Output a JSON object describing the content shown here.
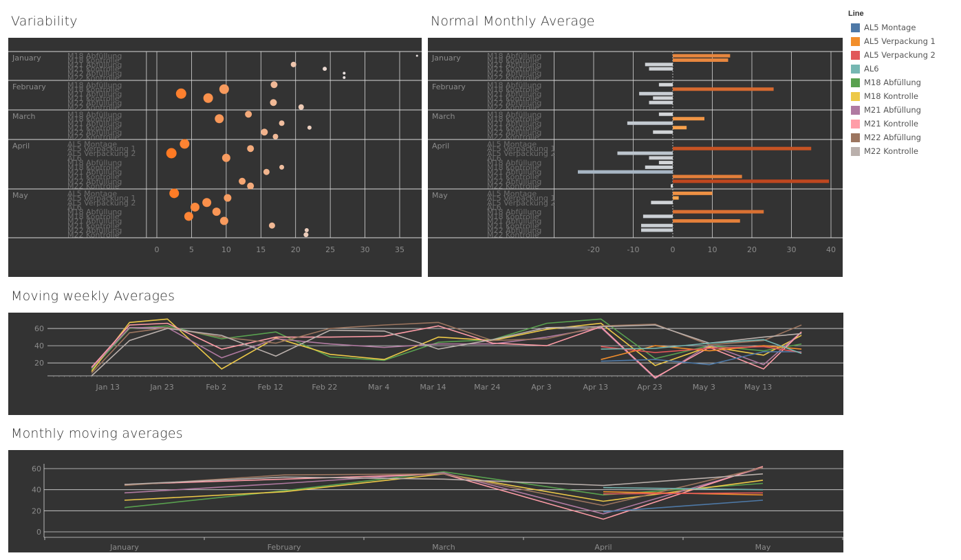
{
  "titles": {
    "variability": "Variability",
    "normal_monthly_average": "Normal Monthly Average",
    "moving_weekly": "Moving weekly Averages",
    "monthly_moving": "Monthly moving averages"
  },
  "legend": {
    "title": "Line",
    "items": [
      {
        "label": "AL5 Montage",
        "color": "#4e79a7"
      },
      {
        "label": "AL5 Verpackung 1",
        "color": "#f28e2b"
      },
      {
        "label": "AL5 Verpackung 2",
        "color": "#e15759"
      },
      {
        "label": "AL6",
        "color": "#76b7b2"
      },
      {
        "label": "M18 Abfüllung",
        "color": "#59a14f"
      },
      {
        "label": "M18 Kontrolle",
        "color": "#edc948"
      },
      {
        "label": "M21 Abfüllung",
        "color": "#b07aa1"
      },
      {
        "label": "M21 Kontrolle",
        "color": "#ff9da7"
      },
      {
        "label": "M22 Abfüllung",
        "color": "#9c755f"
      },
      {
        "label": "M22 Kontrolle",
        "color": "#bab0ac"
      }
    ]
  },
  "chart_data": [
    {
      "id": "variability",
      "type": "scatter",
      "title": "Variability",
      "xlim": [
        -20,
        39
      ],
      "xticks": [
        0,
        5,
        10,
        15,
        20,
        25,
        30,
        35
      ],
      "groups": [
        {
          "month": "January",
          "rows": [
            "M18 Abfüllung",
            "M18 Kontrolle",
            "M21 Abfüllung",
            "M21 Kontrolle",
            "M22 Abfüllung",
            "M22 Kontrolle"
          ],
          "points": [
            [
              37.5,
              0,
              1.5
            ],
            [
              19.7,
              2,
              4
            ],
            [
              24.2,
              3,
              3
            ],
            [
              27.0,
              4,
              2
            ],
            [
              27.0,
              5,
              2
            ]
          ]
        },
        {
          "month": "February",
          "rows": [
            "M18 Abfüllung",
            "M18 Kontrolle",
            "M21 Abfüllung",
            "M21 Kontrolle",
            "M22 Abfüllung",
            "M22 Kontrolle"
          ],
          "points": [
            [
              16.9,
              0,
              5
            ],
            [
              9.7,
              1,
              7
            ],
            [
              3.5,
              2,
              7.5
            ],
            [
              7.4,
              3,
              7
            ],
            [
              16.8,
              4,
              5
            ],
            [
              20.8,
              5,
              4
            ]
          ]
        },
        {
          "month": "March",
          "rows": [
            "M18 Abfüllung",
            "M18 Kontrolle",
            "M21 Abfüllung",
            "M21 Kontrolle",
            "M22 Abfüllung",
            "M22 Kontrolle"
          ],
          "points": [
            [
              13.2,
              0,
              5
            ],
            [
              9.0,
              1,
              6.5
            ],
            [
              18.0,
              2,
              4
            ],
            [
              22.0,
              3,
              3
            ],
            [
              15.5,
              4,
              5
            ],
            [
              17.1,
              5,
              4
            ]
          ]
        },
        {
          "month": "April",
          "rows": [
            "AL5 Montage",
            "AL5 Verpackung 1",
            "AL5 Verpackung 2",
            "AL6",
            "M18 Abfüllung",
            "M18 Kontrolle",
            "M21 Abfüllung",
            "M21 Kontrolle",
            "M22 Abfüllung",
            "M22 Kontrolle"
          ],
          "points": [
            [
              4.0,
              0,
              7
            ],
            [
              13.5,
              1,
              5
            ],
            [
              2.1,
              2,
              7.5
            ],
            [
              10.0,
              3,
              6
            ],
            [
              18.0,
              5,
              3.5
            ],
            [
              15.8,
              6,
              4.5
            ],
            [
              12.3,
              8,
              5
            ],
            [
              13.5,
              9,
              5
            ]
          ]
        },
        {
          "month": "May",
          "rows": [
            "AL5 Montage",
            "AL5 Verpackung 1",
            "AL5 Verpackung 2",
            "AL6",
            "M18 Abfüllung",
            "M18 Kontrolle",
            "M21 Abfüllung",
            "M21 Kontrolle",
            "M22 Abfüllung",
            "M22 Kontrolle"
          ],
          "points": [
            [
              2.5,
              0,
              7
            ],
            [
              10.2,
              1,
              5.5
            ],
            [
              7.2,
              2,
              6.5
            ],
            [
              5.5,
              3,
              6.5
            ],
            [
              8.6,
              4,
              6
            ],
            [
              4.6,
              5,
              6.5
            ],
            [
              9.7,
              6,
              6
            ],
            [
              16.6,
              7,
              4.5
            ],
            [
              21.6,
              8,
              3
            ],
            [
              21.5,
              9,
              3.5
            ]
          ]
        }
      ]
    },
    {
      "id": "normal_monthly_average",
      "type": "bar",
      "title": "Normal Monthly Average",
      "xlim": [
        -27,
        41
      ],
      "xticks": [
        -20,
        -10,
        0,
        10,
        20,
        30,
        40
      ],
      "groups": [
        {
          "month": "January",
          "rows": [
            "M18 Abfüllung",
            "M18 Kontrolle",
            "M21 Abfüllung",
            "M21 Kontrolle",
            "M22 Abfüllung",
            "M22 Kontrolle"
          ],
          "values": [
            14.5,
            14.0,
            -7,
            -6,
            0,
            0
          ]
        },
        {
          "month": "February",
          "rows": [
            "M18 Abfüllung",
            "M18 Kontrolle",
            "M21 Abfüllung",
            "M21 Kontrolle",
            "M22 Abfüllung",
            "M22 Kontrolle"
          ],
          "values": [
            -3.5,
            25.5,
            -8.5,
            -5,
            -6,
            0
          ]
        },
        {
          "month": "March",
          "rows": [
            "M18 Abfüllung",
            "M18 Kontrolle",
            "M21 Abfüllung",
            "M21 Kontrolle",
            "M22 Abfüllung",
            "M22 Kontrolle"
          ],
          "values": [
            -3.5,
            8,
            -11.5,
            3.5,
            -5,
            0
          ]
        },
        {
          "month": "April",
          "rows": [
            "AL5 Montage",
            "AL5 Verpackung 1",
            "AL5 Verpackung 2",
            "AL6",
            "M18 Abfüllung",
            "M18 Kontrolle",
            "M21 Abfüllung",
            "M21 Kontrolle",
            "M22 Abfüllung",
            "M22 Kontrolle"
          ],
          "values": [
            0,
            35,
            -14,
            -6,
            -3.5,
            -7,
            -24,
            17.5,
            39.5,
            -0.5
          ]
        },
        {
          "month": "May",
          "rows": [
            "AL5 Montage",
            "AL5 Verpackung 1",
            "AL5 Verpackung 2",
            "AL6",
            "M18 Abfüllung",
            "M18 Kontrolle",
            "M21 Abfüllung",
            "M21 Kontrolle",
            "M22 Abfüllung",
            "M22 Kontrolle"
          ],
          "values": [
            10,
            1.5,
            -5.5,
            0,
            23,
            -7.5,
            17,
            -8,
            -8,
            0
          ]
        }
      ]
    },
    {
      "id": "moving_weekly",
      "type": "line",
      "title": "Moving weekly Averages",
      "ylim": [
        5,
        72
      ],
      "yticks": [
        20,
        40,
        60
      ],
      "xticks": [
        "Jan 13",
        "Jan 23",
        "Feb 2",
        "Feb 12",
        "Feb 22",
        "Mar 4",
        "Mar 14",
        "Mar 24",
        "Apr 3",
        "Apr 13",
        "Apr 23",
        "May 3",
        "May 13"
      ],
      "x_day_range": [
        3,
        142
      ],
      "x_tick_days": [
        13,
        23,
        33,
        43,
        53,
        63,
        73,
        83,
        93,
        103,
        113,
        123,
        133
      ],
      "series": [
        {
          "name": "M18 Abfüllung",
          "color": "#59a14f",
          "x": [
            10,
            17,
            24,
            34,
            44,
            54,
            64,
            74,
            84,
            94,
            104,
            114,
            124,
            134,
            141
          ],
          "y": [
            12,
            60,
            63,
            48,
            56,
            27,
            23,
            44,
            47,
            66,
            71,
            25,
            40,
            34,
            42
          ]
        },
        {
          "name": "M18 Kontrolle",
          "color": "#edc948",
          "x": [
            10,
            17,
            24,
            34,
            44,
            54,
            64,
            74,
            84,
            94,
            104,
            114,
            124,
            134,
            141
          ],
          "y": [
            10,
            67,
            71,
            13,
            49,
            30,
            24,
            50,
            46,
            59,
            66,
            17,
            39,
            29,
            52
          ]
        },
        {
          "name": "M21 Abfüllung",
          "color": "#b07aa1",
          "x": [
            10,
            17,
            24,
            34,
            44,
            54,
            64,
            74,
            84,
            94,
            104,
            114,
            124,
            134,
            141
          ],
          "y": [
            14,
            61,
            61,
            26,
            48,
            42,
            38,
            42,
            42,
            50,
            61,
            2,
            41,
            18,
            56
          ]
        },
        {
          "name": "M21 Kontrolle",
          "color": "#ff9da7",
          "x": [
            10,
            17,
            24,
            34,
            44,
            54,
            64,
            74,
            84,
            94,
            104,
            114,
            124,
            134,
            141
          ],
          "y": [
            15,
            64,
            66,
            36,
            50,
            50,
            51,
            63,
            43,
            40,
            62,
            3,
            38,
            13,
            56
          ]
        },
        {
          "name": "M22 Abfüllung",
          "color": "#9c755f",
          "x": [
            10,
            17,
            24,
            34,
            44,
            54,
            64,
            74,
            84,
            94,
            104,
            114,
            124,
            134,
            141
          ],
          "y": [
            8,
            55,
            61,
            50,
            43,
            60,
            64,
            67,
            46,
            48,
            63,
            65,
            41,
            46,
            64
          ]
        },
        {
          "name": "M22 Kontrolle",
          "color": "#bab0ac",
          "x": [
            10,
            17,
            24,
            34,
            44,
            54,
            64,
            74,
            84,
            94,
            104,
            114,
            124,
            134,
            141
          ],
          "y": [
            5,
            46,
            60,
            52,
            28,
            58,
            57,
            36,
            47,
            61,
            62,
            64,
            43,
            50,
            54
          ]
        },
        {
          "name": "AL5 Montage",
          "color": "#4e79a7",
          "x": [
            104,
            114,
            124,
            134,
            141
          ],
          "y": [
            22,
            24,
            18,
            33,
            33
          ]
        },
        {
          "name": "AL5 Verpackung 1",
          "color": "#f28e2b",
          "x": [
            104,
            114,
            124,
            134,
            141
          ],
          "y": [
            24,
            40,
            34,
            40,
            36
          ]
        },
        {
          "name": "AL5 Verpackung 2",
          "color": "#e15759",
          "x": [
            104,
            114,
            124,
            134,
            141
          ],
          "y": [
            39,
            32,
            37,
            39,
            32
          ]
        },
        {
          "name": "AL6",
          "color": "#76b7b2",
          "x": [
            104,
            114,
            124,
            134,
            141
          ],
          "y": [
            36,
            37,
            43,
            47,
            31
          ]
        }
      ]
    },
    {
      "id": "monthly_moving",
      "type": "line",
      "title": "Monthly moving averages",
      "ylim": [
        -2,
        66
      ],
      "yticks": [
        0,
        20,
        40,
        60
      ],
      "categories": [
        "January",
        "February",
        "March",
        "April",
        "May"
      ],
      "series": [
        {
          "name": "M18 Abfüllung",
          "color": "#59a14f",
          "values": [
            23,
            39,
            57,
            35,
            46
          ]
        },
        {
          "name": "M18 Kontrolle",
          "color": "#edc948",
          "values": [
            30,
            38,
            55,
            29,
            49
          ]
        },
        {
          "name": "M21 Abfüllung",
          "color": "#b07aa1",
          "values": [
            37,
            46,
            56,
            17,
            61
          ]
        },
        {
          "name": "M21 Kontrolle",
          "color": "#ff9da7",
          "values": [
            45,
            50,
            55,
            12,
            62
          ]
        },
        {
          "name": "M22 Abfüllung",
          "color": "#9c755f",
          "values": [
            44,
            54,
            55,
            25,
            61
          ]
        },
        {
          "name": "M22 Kontrolle",
          "color": "#bab0ac",
          "values": [
            45,
            52,
            50,
            44,
            55
          ]
        },
        {
          "name": "AL5 Montage",
          "color": "#4e79a7",
          "values": [
            null,
            null,
            null,
            19,
            30
          ]
        },
        {
          "name": "AL5 Verpackung 1",
          "color": "#f28e2b",
          "values": [
            null,
            null,
            null,
            38,
            35
          ]
        },
        {
          "name": "AL5 Verpackung 2",
          "color": "#e15759",
          "values": [
            null,
            null,
            null,
            36,
            37
          ]
        },
        {
          "name": "AL6",
          "color": "#76b7b2",
          "values": [
            null,
            null,
            null,
            42,
            40
          ]
        }
      ]
    }
  ]
}
